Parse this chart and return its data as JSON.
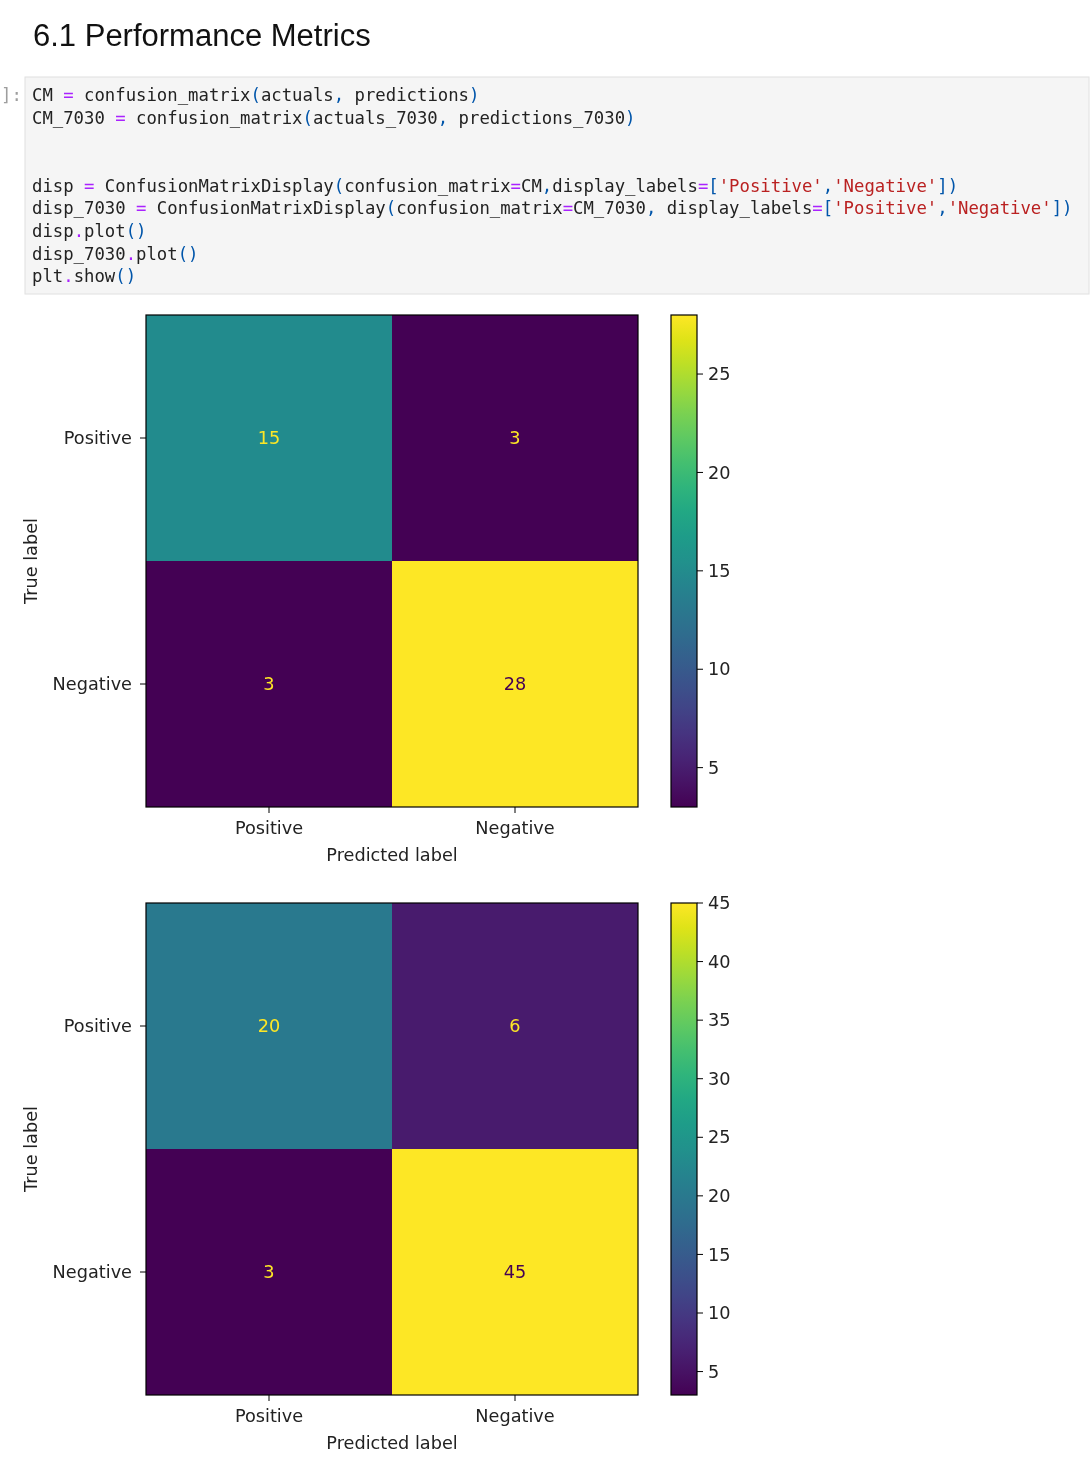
{
  "chart_data": [
    {
      "type": "other",
      "title": "6.1 Performance Metrics",
      "annotations": [
        "]:",
        "CM = confusion_matrix(actuals, predictions)\nCM_7030 = confusion_matrix(actuals_7030, predictions_7030)\n\n\ndisp = ConfusionMatrixDisplay(confusion_matrix=CM,display_labels=['Positive','Negative'])\ndisp_7030 = ConfusionMatrixDisplay(confusion_matrix=CM_7030, display_labels=['Positive','Negative'])\ndisp.plot()\ndisp_7030.plot()\nplt.show()"
      ]
    },
    {
      "type": "heatmap",
      "categories": [
        "Positive",
        "Negative"
      ],
      "y_categories": [
        "Positive",
        "Negative"
      ],
      "cells": [
        [
          15,
          3
        ],
        [
          3,
          28
        ]
      ],
      "clim": [
        3,
        28
      ],
      "cticks": [
        5,
        10,
        15,
        20,
        25
      ],
      "xlabel": "Predicted label",
      "ylabel": "True label",
      "data_labels": true
    },
    {
      "type": "heatmap",
      "categories": [
        "Positive",
        "Negative"
      ],
      "y_categories": [
        "Positive",
        "Negative"
      ],
      "cells": [
        [
          20,
          6
        ],
        [
          3,
          45
        ]
      ],
      "clim": [
        3,
        45
      ],
      "cticks": [
        5,
        10,
        15,
        20,
        25,
        30,
        35,
        40,
        45
      ],
      "xlabel": "Predicted label",
      "ylabel": "True label",
      "data_labels": true
    }
  ]
}
